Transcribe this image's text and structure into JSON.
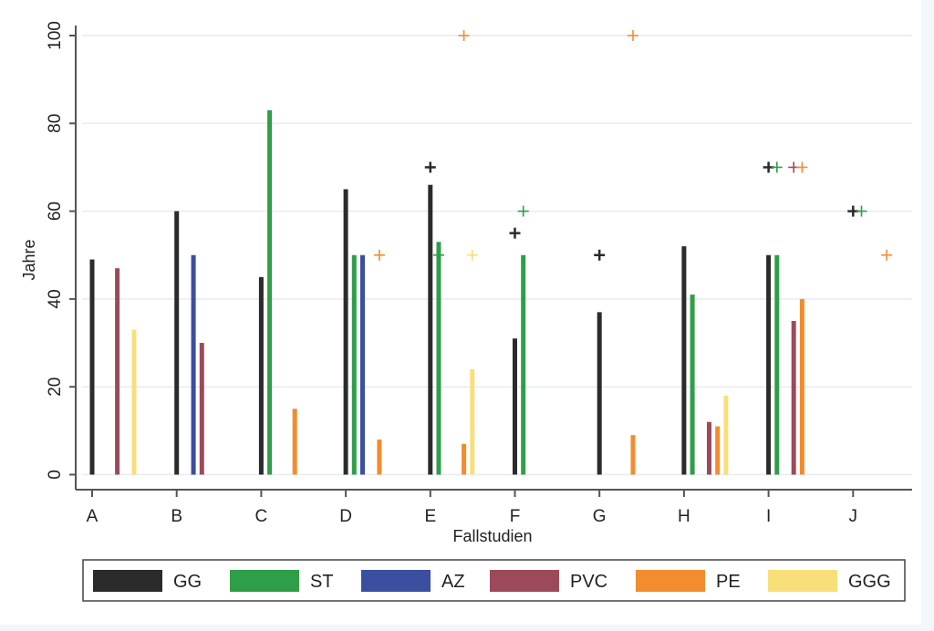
{
  "chart_data": {
    "type": "bar",
    "title": "",
    "xlabel": "Fallstudien",
    "ylabel": "Jahre",
    "ylim": [
      0,
      100
    ],
    "yticks": [
      0,
      20,
      40,
      60,
      80,
      100
    ],
    "grid": true,
    "legend_position": "bottom",
    "categories": [
      "A",
      "B",
      "C",
      "D",
      "E",
      "F",
      "G",
      "H",
      "I",
      "J"
    ],
    "series": [
      {
        "name": "GG",
        "color": "#2b2b2b",
        "values": [
          49,
          60,
          45,
          65,
          66,
          31,
          37,
          52,
          50,
          null
        ],
        "markers": [
          null,
          null,
          null,
          null,
          70,
          55,
          50,
          null,
          70,
          60
        ]
      },
      {
        "name": "ST",
        "color": "#2e9e48",
        "values": [
          null,
          null,
          83,
          50,
          53,
          50,
          null,
          41,
          50,
          null
        ],
        "markers": [
          null,
          null,
          null,
          null,
          50,
          60,
          null,
          null,
          70,
          60
        ]
      },
      {
        "name": "AZ",
        "color": "#3b4fa0",
        "values": [
          null,
          50,
          null,
          50,
          null,
          null,
          null,
          null,
          null,
          null
        ],
        "markers": [
          null,
          null,
          null,
          null,
          null,
          null,
          null,
          null,
          null,
          null
        ]
      },
      {
        "name": "PVC",
        "color": "#9c4a5a",
        "values": [
          47,
          30,
          null,
          null,
          null,
          null,
          null,
          12,
          35,
          null
        ],
        "markers": [
          null,
          null,
          null,
          null,
          null,
          null,
          null,
          null,
          70,
          null
        ]
      },
      {
        "name": "PE",
        "color": "#f28c2e",
        "values": [
          null,
          null,
          15,
          8,
          7,
          null,
          9,
          11,
          40,
          null
        ],
        "markers": [
          null,
          null,
          null,
          50,
          100,
          null,
          100,
          null,
          70,
          50
        ]
      },
      {
        "name": "GGG",
        "color": "#f9df7a",
        "values": [
          33,
          null,
          null,
          null,
          24,
          null,
          null,
          18,
          null,
          null
        ],
        "markers": [
          null,
          null,
          null,
          null,
          50,
          null,
          null,
          null,
          null,
          null
        ]
      }
    ]
  }
}
